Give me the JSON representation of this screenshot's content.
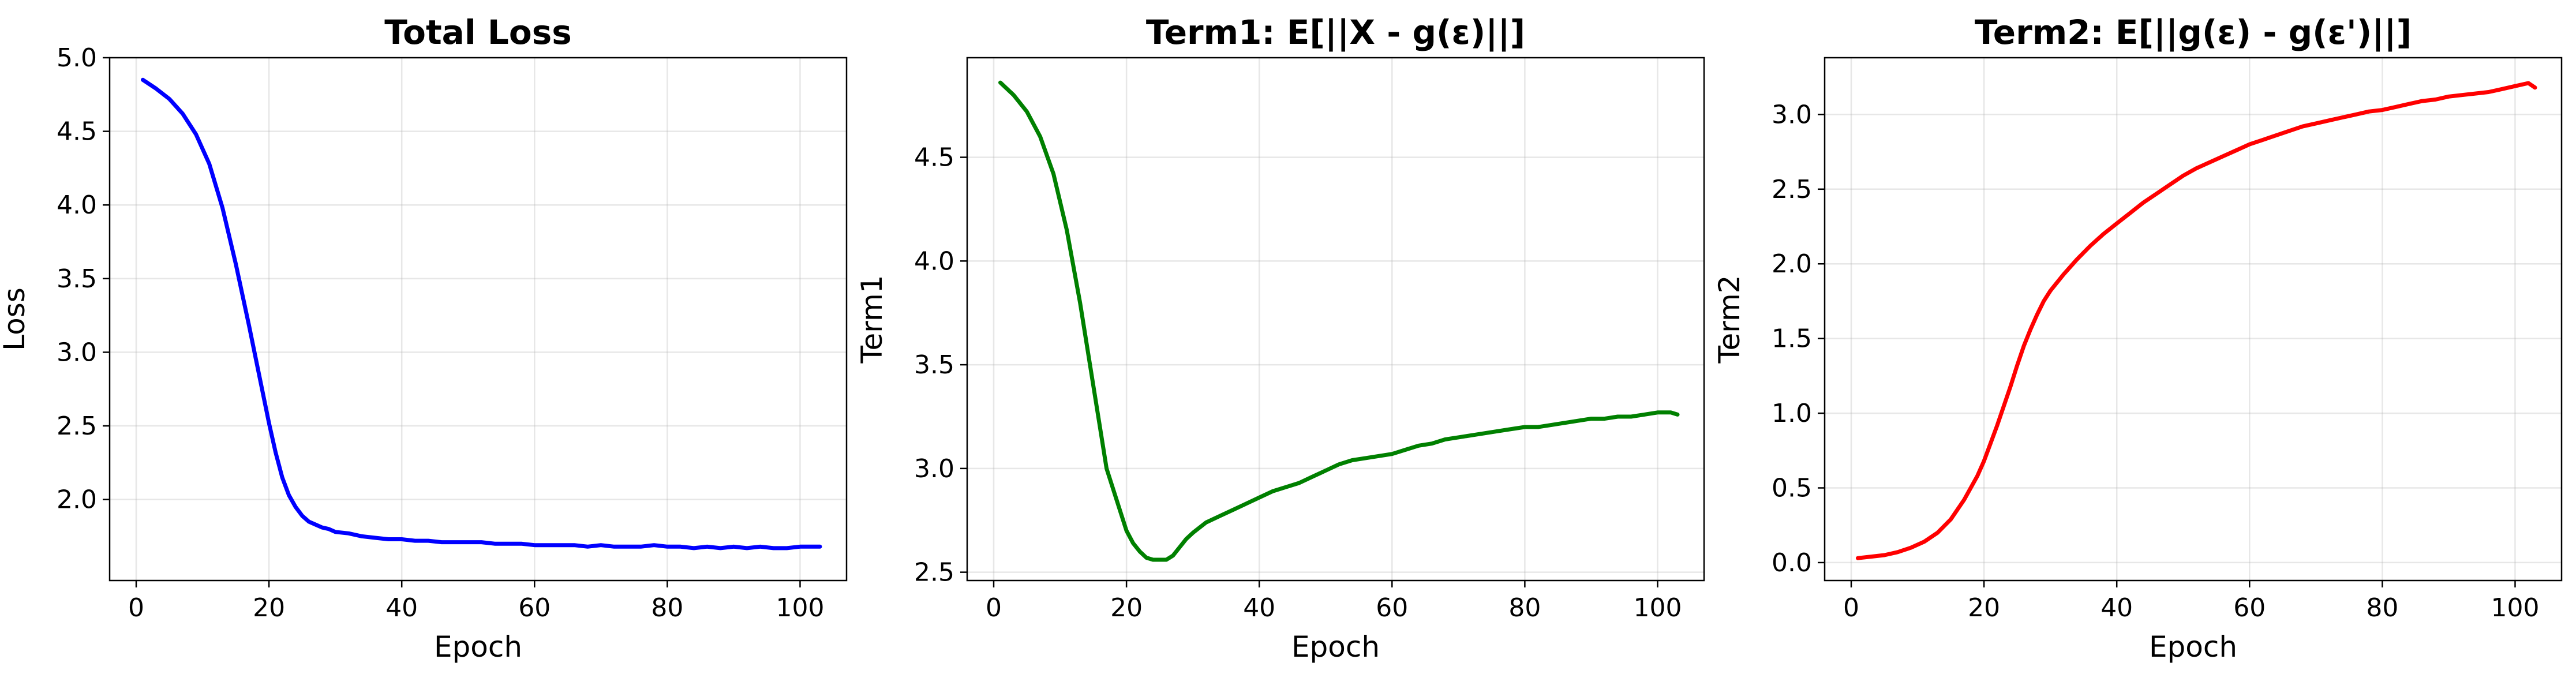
{
  "chart_data": [
    {
      "type": "line",
      "title": "Total Loss",
      "xlabel": "Epoch",
      "ylabel": "Loss",
      "xlim": [
        -4,
        107
      ],
      "ylim": [
        1.45,
        5.0
      ],
      "xticks": [
        0,
        20,
        40,
        60,
        80,
        100
      ],
      "yticks": [
        2.0,
        2.5,
        3.0,
        3.5,
        4.0,
        4.5,
        5.0
      ],
      "grid": true,
      "color": "#0000ff",
      "series": [
        {
          "x": [
            1,
            3,
            5,
            7,
            9,
            11,
            13,
            15,
            17,
            19,
            20,
            21,
            22,
            23,
            24,
            25,
            26,
            27,
            28,
            29,
            30,
            32,
            34,
            36,
            38,
            40,
            42,
            44,
            46,
            48,
            50,
            52,
            54,
            56,
            58,
            60,
            62,
            64,
            66,
            68,
            70,
            72,
            74,
            76,
            78,
            80,
            82,
            84,
            86,
            88,
            90,
            92,
            94,
            96,
            98,
            100,
            103
          ],
          "y": [
            4.85,
            4.79,
            4.72,
            4.62,
            4.48,
            4.28,
            3.98,
            3.6,
            3.18,
            2.74,
            2.52,
            2.32,
            2.15,
            2.03,
            1.95,
            1.89,
            1.85,
            1.83,
            1.81,
            1.8,
            1.78,
            1.77,
            1.75,
            1.74,
            1.73,
            1.73,
            1.72,
            1.72,
            1.71,
            1.71,
            1.71,
            1.71,
            1.7,
            1.7,
            1.7,
            1.69,
            1.69,
            1.69,
            1.69,
            1.68,
            1.69,
            1.68,
            1.68,
            1.68,
            1.69,
            1.68,
            1.68,
            1.67,
            1.68,
            1.67,
            1.68,
            1.67,
            1.68,
            1.67,
            1.67,
            1.68,
            1.68
          ]
        }
      ]
    },
    {
      "type": "line",
      "title": "Term1: E[||X - g(ε)||]",
      "xlabel": "Epoch",
      "ylabel": "Term1",
      "xlim": [
        -4,
        107
      ],
      "ylim": [
        2.46,
        4.98
      ],
      "xticks": [
        0,
        20,
        40,
        60,
        80,
        100
      ],
      "yticks": [
        2.5,
        3.0,
        3.5,
        4.0,
        4.5
      ],
      "grid": true,
      "color": "#008000",
      "series": [
        {
          "x": [
            1,
            3,
            5,
            7,
            9,
            11,
            13,
            15,
            17,
            19,
            20,
            21,
            22,
            23,
            24,
            25,
            26,
            27,
            28,
            29,
            30,
            32,
            34,
            36,
            38,
            40,
            42,
            44,
            46,
            48,
            50,
            52,
            54,
            56,
            58,
            60,
            62,
            64,
            66,
            68,
            70,
            72,
            74,
            76,
            78,
            80,
            82,
            84,
            86,
            88,
            90,
            92,
            94,
            96,
            98,
            100,
            102,
            103
          ],
          "y": [
            4.86,
            4.8,
            4.72,
            4.6,
            4.42,
            4.15,
            3.8,
            3.4,
            3.0,
            2.8,
            2.7,
            2.64,
            2.6,
            2.57,
            2.56,
            2.56,
            2.56,
            2.58,
            2.62,
            2.66,
            2.69,
            2.74,
            2.77,
            2.8,
            2.83,
            2.86,
            2.89,
            2.91,
            2.93,
            2.96,
            2.99,
            3.02,
            3.04,
            3.05,
            3.06,
            3.07,
            3.09,
            3.11,
            3.12,
            3.14,
            3.15,
            3.16,
            3.17,
            3.18,
            3.19,
            3.2,
            3.2,
            3.21,
            3.22,
            3.23,
            3.24,
            3.24,
            3.25,
            3.25,
            3.26,
            3.27,
            3.27,
            3.26
          ]
        }
      ]
    },
    {
      "type": "line",
      "title": "Term2: E[||g(ε) - g(ε')||]",
      "xlabel": "Epoch",
      "ylabel": "Term2",
      "xlim": [
        -4,
        107
      ],
      "ylim": [
        -0.12,
        3.38
      ],
      "xticks": [
        0,
        20,
        40,
        60,
        80,
        100
      ],
      "yticks": [
        0.0,
        0.5,
        1.0,
        1.5,
        2.0,
        2.5,
        3.0
      ],
      "grid": true,
      "color": "#ff0000",
      "series": [
        {
          "x": [
            1,
            3,
            5,
            7,
            9,
            11,
            13,
            15,
            17,
            19,
            20,
            21,
            22,
            23,
            24,
            25,
            26,
            27,
            28,
            29,
            30,
            32,
            34,
            36,
            38,
            40,
            42,
            44,
            46,
            48,
            50,
            52,
            54,
            56,
            58,
            60,
            62,
            64,
            66,
            68,
            70,
            72,
            74,
            76,
            78,
            80,
            82,
            84,
            86,
            88,
            90,
            92,
            94,
            96,
            98,
            100,
            102,
            103
          ],
          "y": [
            0.03,
            0.04,
            0.05,
            0.07,
            0.1,
            0.14,
            0.2,
            0.29,
            0.42,
            0.58,
            0.68,
            0.8,
            0.92,
            1.05,
            1.18,
            1.32,
            1.45,
            1.56,
            1.66,
            1.75,
            1.82,
            1.93,
            2.03,
            2.12,
            2.2,
            2.27,
            2.34,
            2.41,
            2.47,
            2.53,
            2.59,
            2.64,
            2.68,
            2.72,
            2.76,
            2.8,
            2.83,
            2.86,
            2.89,
            2.92,
            2.94,
            2.96,
            2.98,
            3.0,
            3.02,
            3.03,
            3.05,
            3.07,
            3.09,
            3.1,
            3.12,
            3.13,
            3.14,
            3.15,
            3.17,
            3.19,
            3.21,
            3.18
          ]
        }
      ]
    }
  ]
}
